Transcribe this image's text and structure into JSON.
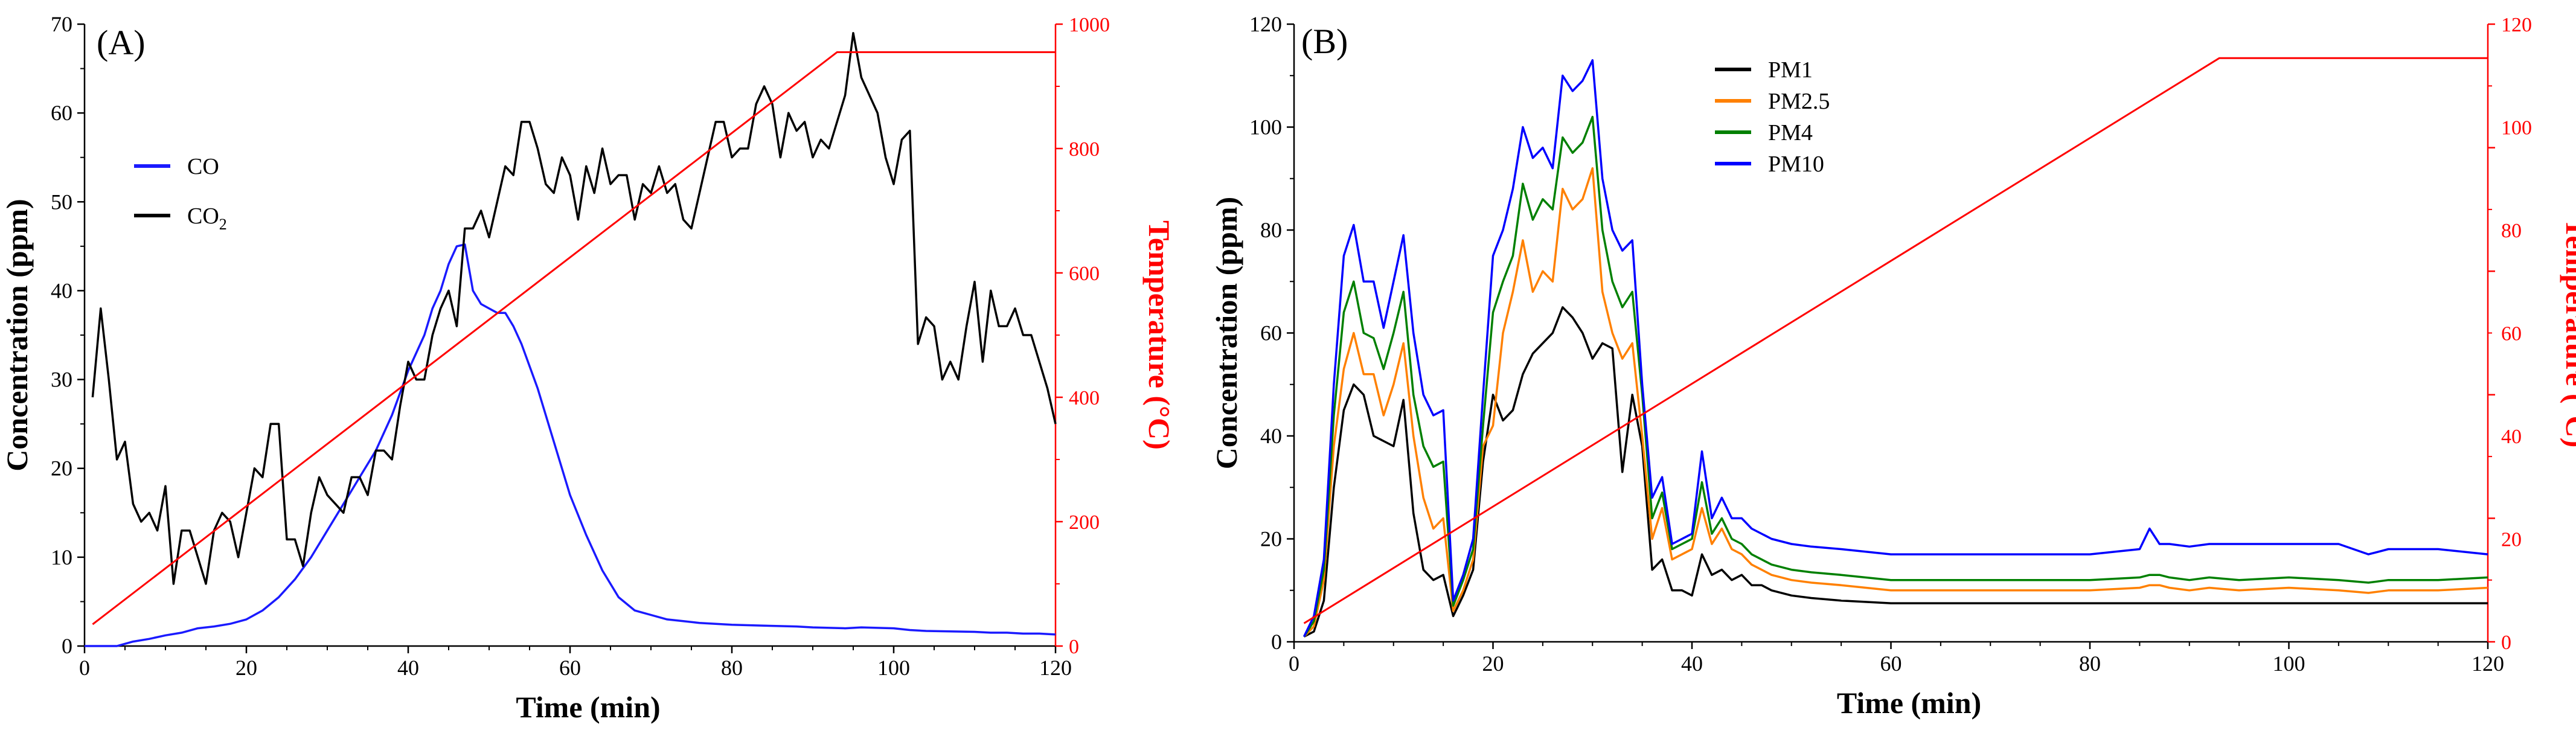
{
  "chart_data": [
    {
      "panel": "(A)",
      "type": "line",
      "xlabel": "Time (min)",
      "ylabel": "Concentration (ppm)",
      "y2label": "Temperature (°C)",
      "xlim": [
        0,
        120
      ],
      "ylim": [
        0,
        70
      ],
      "y2lim": [
        0,
        1000
      ],
      "xticks": [
        "0",
        "20",
        "40",
        "60",
        "80",
        "100",
        "120"
      ],
      "yticks": [
        "0",
        "10",
        "20",
        "30",
        "40",
        "50",
        "60",
        "70"
      ],
      "y2ticks": [
        "0",
        "200",
        "400",
        "600",
        "800",
        "1000"
      ],
      "legend_position": "upper-left",
      "series": [
        {
          "name": "CO",
          "legend_text": "CO",
          "axis": "left",
          "color": "#1a1aff",
          "x": [
            0,
            4,
            6,
            8,
            10,
            12,
            14,
            16,
            18,
            20,
            22,
            24,
            26,
            28,
            30,
            32,
            34,
            36,
            38,
            40,
            42,
            43,
            44,
            45,
            46,
            47,
            48,
            49,
            50,
            51,
            52,
            53,
            54,
            56,
            58,
            60,
            62,
            64,
            66,
            68,
            70,
            72,
            74,
            76,
            78,
            80,
            84,
            88,
            90,
            94,
            96,
            100,
            102,
            104,
            110,
            112,
            114,
            116,
            118,
            120
          ],
          "values": [
            0,
            0,
            0.5,
            0.8,
            1.2,
            1.5,
            2,
            2.2,
            2.5,
            3,
            4,
            5.5,
            7.5,
            10,
            13,
            16,
            19,
            22,
            26,
            31,
            35,
            38,
            40,
            43,
            45,
            45.2,
            40,
            38.5,
            38,
            37.5,
            37.5,
            36,
            34,
            29,
            23,
            17,
            12.5,
            8.5,
            5.5,
            4,
            3.5,
            3,
            2.8,
            2.6,
            2.5,
            2.4,
            2.3,
            2.2,
            2.1,
            2,
            2.1,
            2,
            1.8,
            1.7,
            1.6,
            1.5,
            1.5,
            1.4,
            1.4,
            1.3
          ]
        },
        {
          "name": "CO2",
          "legend_text": "CO",
          "legend_sub": "2",
          "axis": "left",
          "color": "#000000",
          "x": [
            1,
            2,
            3,
            4,
            5,
            6,
            7,
            8,
            9,
            10,
            11,
            12,
            13,
            14,
            15,
            16,
            17,
            18,
            19,
            20,
            21,
            22,
            23,
            24,
            25,
            26,
            27,
            28,
            29,
            30,
            31,
            32,
            33,
            34,
            35,
            36,
            37,
            38,
            39,
            40,
            41,
            42,
            43,
            44,
            45,
            46,
            47,
            48,
            49,
            50,
            51,
            52,
            53,
            54,
            55,
            56,
            57,
            58,
            59,
            60,
            61,
            62,
            63,
            64,
            65,
            66,
            67,
            68,
            69,
            70,
            71,
            72,
            73,
            74,
            75,
            76,
            77,
            78,
            79,
            80,
            81,
            82,
            83,
            84,
            85,
            86,
            87,
            88,
            89,
            90,
            91,
            92,
            93,
            94,
            95,
            96,
            97,
            98,
            99,
            100,
            101,
            102,
            103,
            104,
            105,
            106,
            107,
            108,
            109,
            110,
            111,
            112,
            113,
            114,
            115,
            116,
            117,
            118,
            119,
            120
          ],
          "values": [
            28,
            38,
            30,
            21,
            23,
            16,
            14,
            15,
            13,
            18,
            7,
            13,
            13,
            10,
            7,
            13,
            15,
            14,
            10,
            15,
            20,
            19,
            25,
            25,
            12,
            12,
            9,
            15,
            19,
            17,
            16,
            15,
            19,
            19,
            17,
            22,
            22,
            21,
            27,
            32,
            30,
            30,
            35,
            38,
            40,
            36,
            47,
            47,
            49,
            46,
            50,
            54,
            53,
            59,
            59,
            56,
            52,
            51,
            55,
            53,
            48,
            54,
            51,
            56,
            52,
            53,
            53,
            48,
            52,
            51,
            54,
            51,
            52,
            48,
            47,
            51,
            55,
            59,
            59,
            55,
            56,
            56,
            61,
            63,
            61,
            55,
            60,
            58,
            59,
            55,
            57,
            56,
            59,
            62,
            69,
            64,
            62,
            60,
            55,
            52,
            57,
            58,
            34,
            37,
            36,
            30,
            32,
            30,
            36,
            41,
            32,
            40,
            36,
            36,
            38,
            35,
            35,
            32,
            29,
            25
          ]
        },
        {
          "name": "Temperature",
          "axis": "right",
          "color": "#ff0000",
          "x": [
            1,
            93,
            120
          ],
          "values": [
            35,
            955,
            955
          ]
        }
      ]
    },
    {
      "panel": "(B)",
      "type": "line",
      "xlabel": "Time (min)",
      "ylabel": "Concentration (ppm)",
      "y2label": "Temperature (°C)",
      "xlim": [
        0,
        120
      ],
      "ylim": [
        0,
        120
      ],
      "y2lim": [
        0,
        1000
      ],
      "xticks": [
        "0",
        "20",
        "40",
        "60",
        "80",
        "100",
        "120"
      ],
      "yticks": [
        "0",
        "20",
        "40",
        "60",
        "80",
        "100",
        "120"
      ],
      "y2ticks": [
        "0",
        "200",
        "400",
        "600",
        "800",
        "1000"
      ],
      "y2ticks_shown": [
        "0",
        "20",
        "40",
        "60",
        "80",
        "100",
        "120"
      ],
      "legend_position": "upper-center",
      "x_common": [
        1,
        2,
        3,
        4,
        5,
        6,
        7,
        8,
        9,
        10,
        11,
        12,
        13,
        14,
        15,
        16,
        17,
        18,
        19,
        20,
        21,
        22,
        23,
        24,
        25,
        26,
        27,
        28,
        29,
        30,
        31,
        32,
        33,
        34,
        35,
        36,
        37,
        38,
        39,
        40,
        41,
        42,
        43,
        44,
        45,
        46,
        47,
        48,
        50,
        52,
        55,
        60,
        70,
        80,
        85,
        86,
        87,
        88,
        90,
        92,
        95,
        100,
        105,
        108,
        110,
        115,
        120
      ],
      "series": [
        {
          "name": "PM1",
          "legend_text": "PM1",
          "axis": "left",
          "color": "#000000",
          "x": [
            1,
            2,
            3,
            4,
            5,
            6,
            7,
            8,
            9,
            10,
            11,
            12,
            13,
            14,
            15,
            16,
            17,
            18,
            19,
            20,
            21,
            22,
            23,
            24,
            25,
            26,
            27,
            28,
            29,
            30,
            31,
            32,
            33,
            34,
            35,
            36,
            37,
            38,
            39,
            40,
            41,
            42,
            43,
            44,
            45,
            46,
            47,
            48,
            50,
            52,
            55,
            60,
            70,
            80,
            85,
            86,
            87,
            88,
            90,
            92,
            95,
            100,
            105,
            108,
            110,
            115,
            120
          ],
          "values": [
            1,
            2,
            8,
            30,
            45,
            50,
            48,
            40,
            39,
            38,
            47,
            25,
            14,
            12,
            13,
            5,
            9,
            14,
            35,
            48,
            43,
            45,
            52,
            56,
            58,
            60,
            65,
            63,
            60,
            55,
            58,
            57,
            33,
            48,
            38,
            14,
            16,
            10,
            10,
            9,
            17,
            13,
            14,
            12,
            13,
            11,
            11,
            10,
            9,
            8.5,
            8,
            7.5,
            7.5,
            7.5,
            7.5,
            7.5,
            7.5,
            7.5,
            7.5,
            7.5,
            7.5,
            7.5,
            7.5,
            7.5,
            7.5,
            7.5,
            7.5
          ]
        },
        {
          "name": "PM2.5",
          "legend_text": "PM2.5",
          "axis": "left",
          "color": "#ff8000",
          "x": [
            1,
            2,
            3,
            4,
            5,
            6,
            7,
            8,
            9,
            10,
            11,
            12,
            13,
            14,
            15,
            16,
            17,
            18,
            19,
            20,
            21,
            22,
            23,
            24,
            25,
            26,
            27,
            28,
            29,
            30,
            31,
            32,
            33,
            34,
            35,
            36,
            37,
            38,
            39,
            40,
            41,
            42,
            43,
            44,
            45,
            46,
            47,
            48,
            50,
            52,
            55,
            60,
            70,
            80,
            85,
            86,
            87,
            88,
            90,
            92,
            95,
            100,
            105,
            108,
            110,
            115,
            120
          ],
          "values": [
            1,
            3,
            12,
            38,
            53,
            60,
            52,
            52,
            44,
            50,
            58,
            40,
            28,
            22,
            24,
            6,
            10,
            16,
            38,
            42,
            60,
            68,
            78,
            68,
            72,
            70,
            88,
            84,
            86,
            92,
            68,
            60,
            55,
            58,
            40,
            20,
            26,
            16,
            17,
            18,
            26,
            19,
            22,
            18,
            17,
            15,
            14,
            13,
            12,
            11.5,
            11,
            10,
            10,
            10,
            10.5,
            11,
            11,
            10.5,
            10,
            10.5,
            10,
            10.5,
            10,
            9.5,
            10,
            10,
            10.5
          ]
        },
        {
          "name": "PM4",
          "legend_text": "PM4",
          "axis": "left",
          "color": "#008000",
          "x": [
            1,
            2,
            3,
            4,
            5,
            6,
            7,
            8,
            9,
            10,
            11,
            12,
            13,
            14,
            15,
            16,
            17,
            18,
            19,
            20,
            21,
            22,
            23,
            24,
            25,
            26,
            27,
            28,
            29,
            30,
            31,
            32,
            33,
            34,
            35,
            36,
            37,
            38,
            39,
            40,
            41,
            42,
            43,
            44,
            45,
            46,
            47,
            48,
            50,
            52,
            55,
            60,
            70,
            80,
            85,
            86,
            87,
            88,
            90,
            92,
            95,
            100,
            105,
            108,
            110,
            115,
            120
          ],
          "values": [
            1,
            4,
            14,
            44,
            64,
            70,
            60,
            59,
            53,
            60,
            68,
            48,
            38,
            34,
            35,
            7,
            12,
            18,
            42,
            64,
            70,
            75,
            89,
            82,
            86,
            84,
            98,
            95,
            97,
            102,
            80,
            70,
            65,
            68,
            48,
            24,
            29,
            18,
            19,
            20,
            31,
            21,
            24,
            20,
            19,
            17,
            16,
            15,
            14,
            13.5,
            13,
            12,
            12,
            12,
            12.5,
            13,
            13,
            12.5,
            12,
            12.5,
            12,
            12.5,
            12,
            11.5,
            12,
            12,
            12.5
          ]
        },
        {
          "name": "PM10",
          "legend_text": "PM10",
          "axis": "left",
          "color": "#0000ff",
          "x": [
            1,
            2,
            3,
            4,
            5,
            6,
            7,
            8,
            9,
            10,
            11,
            12,
            13,
            14,
            15,
            16,
            17,
            18,
            19,
            20,
            21,
            22,
            23,
            24,
            25,
            26,
            27,
            28,
            29,
            30,
            31,
            32,
            33,
            34,
            35,
            36,
            37,
            38,
            39,
            40,
            41,
            42,
            43,
            44,
            45,
            46,
            47,
            48,
            50,
            52,
            55,
            60,
            70,
            80,
            85,
            86,
            87,
            88,
            90,
            92,
            95,
            100,
            105,
            108,
            110,
            115,
            120
          ],
          "values": [
            1,
            5,
            16,
            50,
            75,
            81,
            70,
            70,
            61,
            70,
            79,
            60,
            48,
            44,
            45,
            8,
            13,
            20,
            48,
            75,
            80,
            88,
            100,
            94,
            96,
            92,
            110,
            107,
            109,
            113,
            90,
            80,
            76,
            78,
            50,
            28,
            32,
            19,
            20,
            21,
            37,
            24,
            28,
            24,
            24,
            22,
            21,
            20,
            19,
            18.5,
            18,
            17,
            17,
            17,
            18,
            22,
            19,
            19,
            18.5,
            19,
            19,
            19,
            19,
            17,
            18,
            18,
            17
          ]
        },
        {
          "name": "Temperature",
          "axis": "right",
          "color": "#ff0000",
          "x": [
            1,
            93,
            120
          ],
          "values": [
            30,
            945,
            945
          ]
        }
      ]
    }
  ]
}
